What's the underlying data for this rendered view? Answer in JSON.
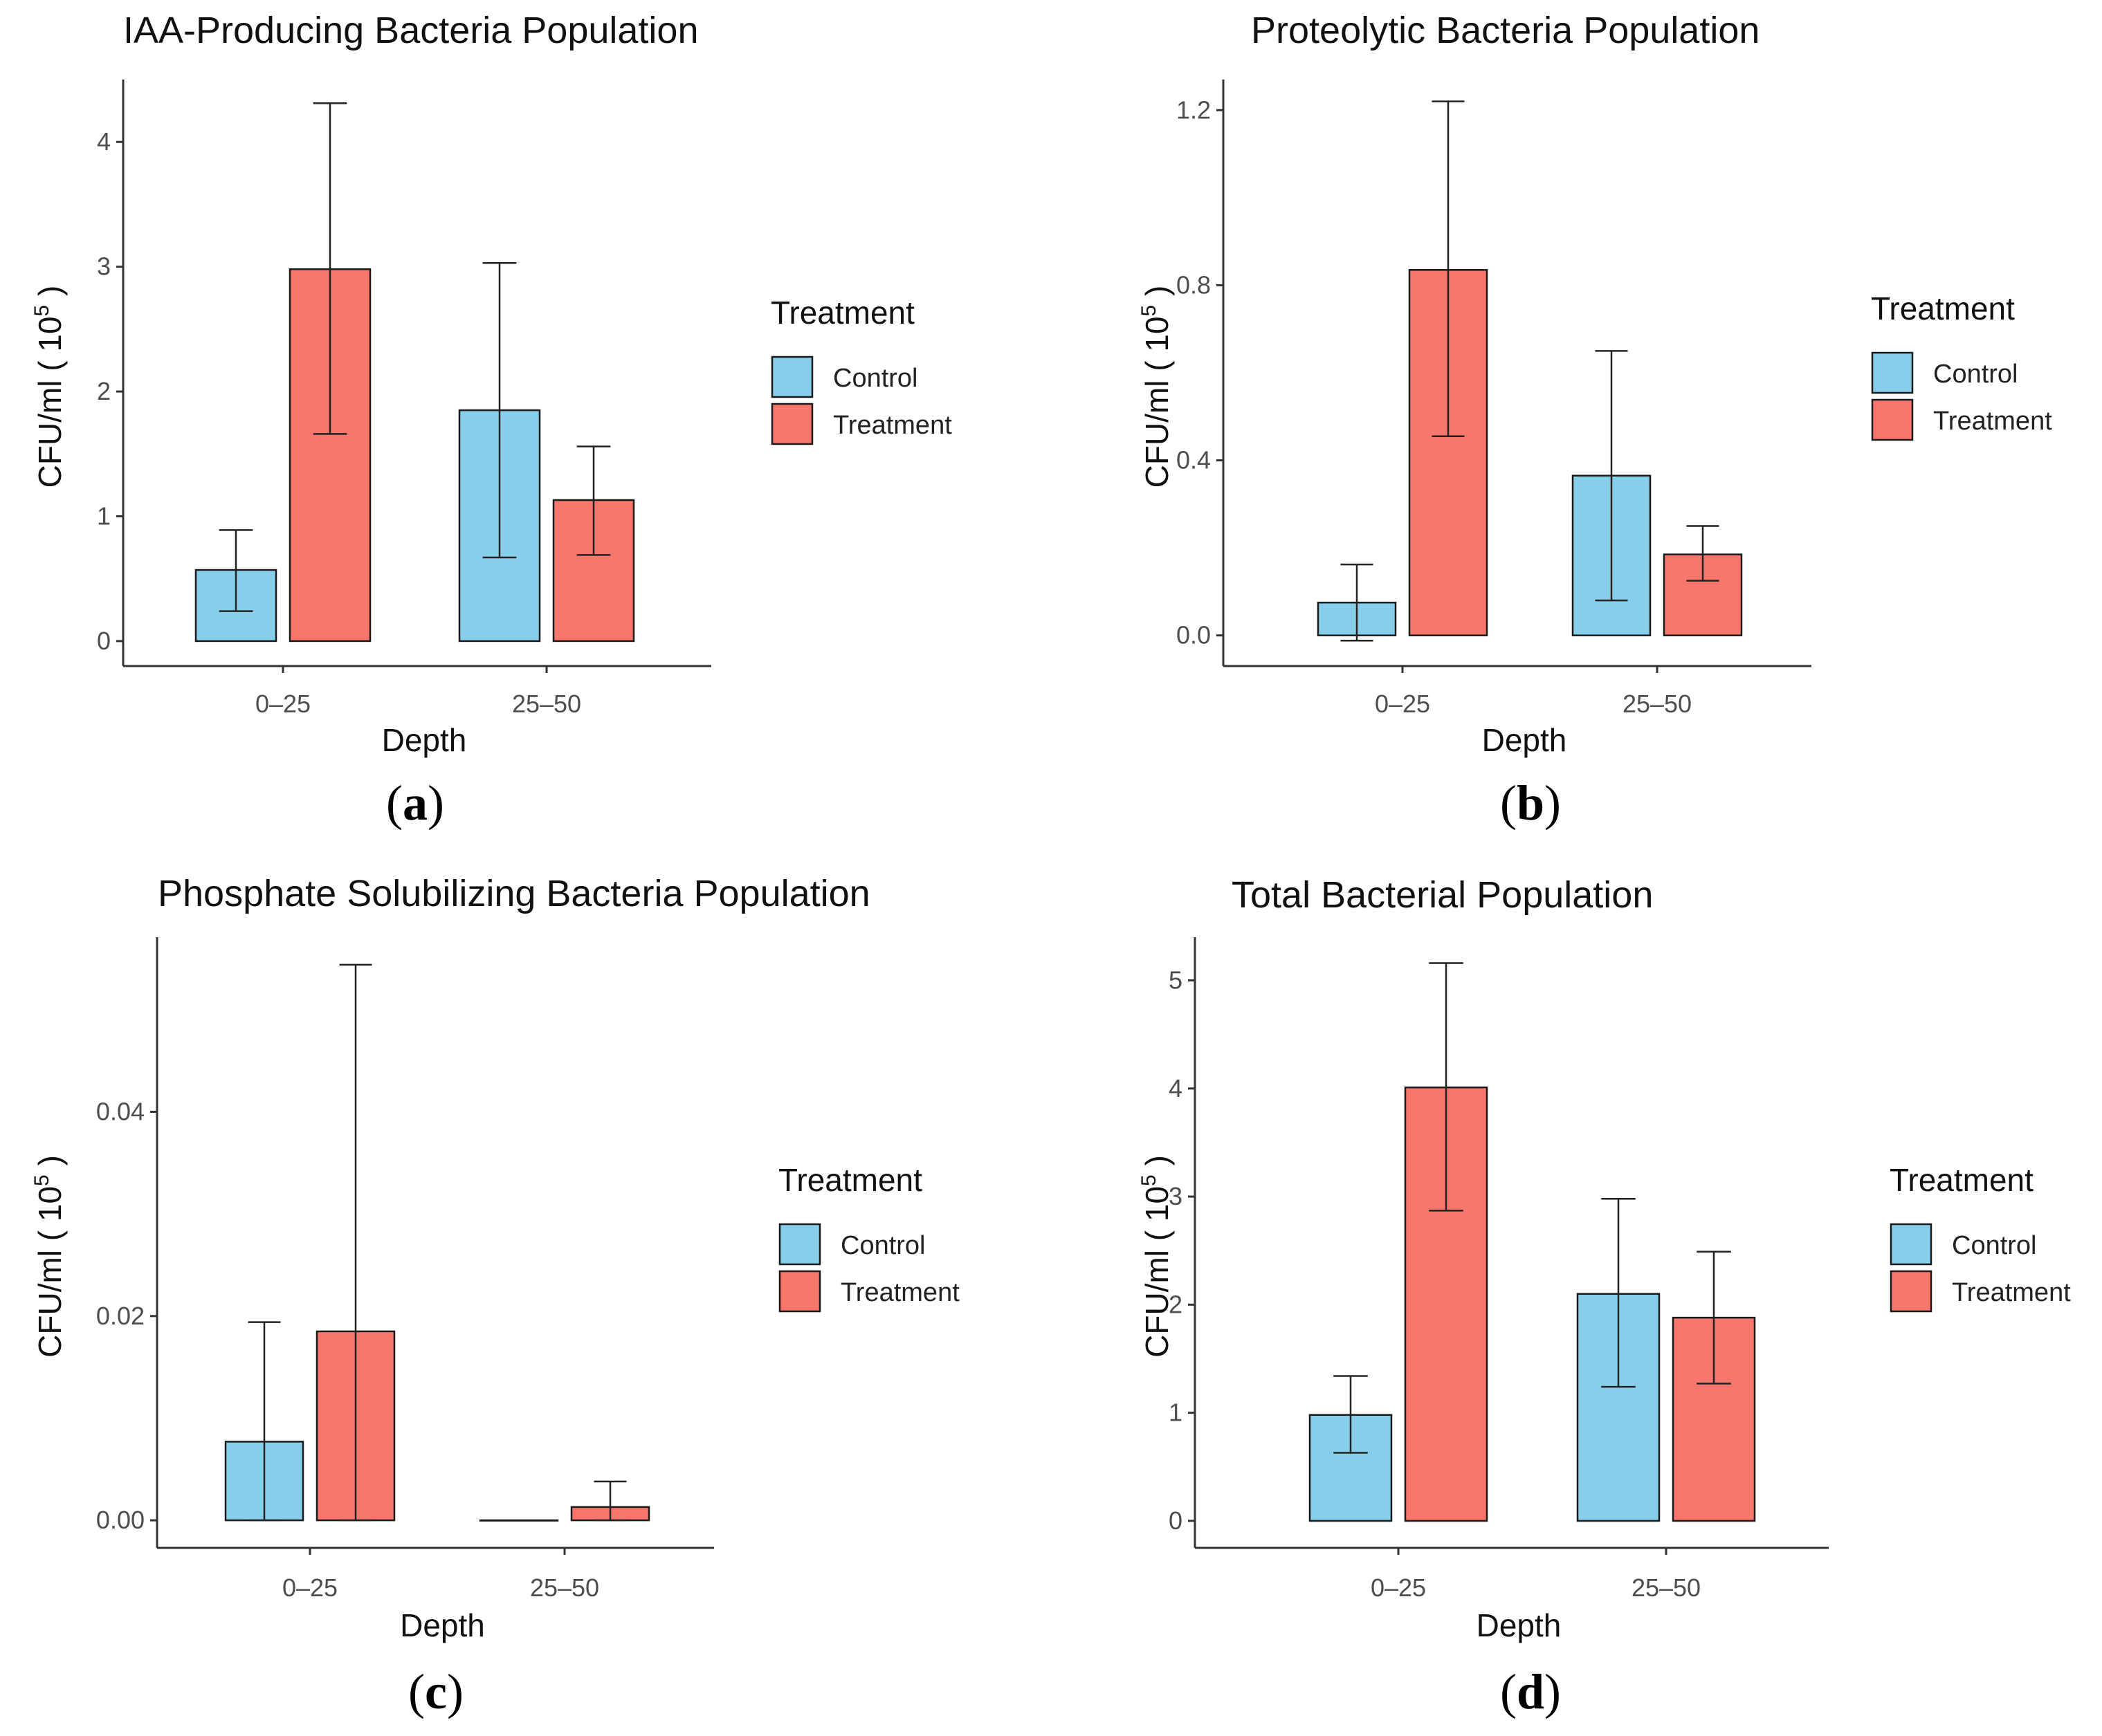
{
  "colors": {
    "control": "#87CEEB",
    "treatment": "#F8776C",
    "outline": "#1a1a1a"
  },
  "legend": {
    "title": "Treatment",
    "items": [
      {
        "label": "Control",
        "color": "#87CEEB"
      },
      {
        "label": "Treatment",
        "color": "#F8776C"
      }
    ]
  },
  "chart_data": [
    {
      "type": "bar",
      "panel_label": "a",
      "title": "IAA-Producing Bacteria Population",
      "xlabel": "Depth",
      "ylabel": "CFU/ml ( 10",
      "ylabel_sup": "5",
      "ylabel_end": " )",
      "categories": [
        "0–25",
        "25–50"
      ],
      "ylim": [
        -0.2,
        4.5
      ],
      "yticks": [
        0,
        1,
        2,
        3,
        4
      ],
      "ytick_labels": [
        "0",
        "1",
        "2",
        "3",
        "4"
      ],
      "series": [
        {
          "name": "Control",
          "values": [
            0.57,
            1.85
          ],
          "err_low": [
            0.24,
            0.67
          ],
          "err_high": [
            0.89,
            3.03
          ]
        },
        {
          "name": "Treatment",
          "values": [
            2.98,
            1.13
          ],
          "err_low": [
            1.66,
            0.69
          ],
          "err_high": [
            4.31,
            1.56
          ]
        }
      ]
    },
    {
      "type": "bar",
      "panel_label": "b",
      "title": "Proteolytic Bacteria Population",
      "xlabel": "Depth",
      "ylabel": "CFU/ml ( 10",
      "ylabel_sup": "5",
      "ylabel_end": " )",
      "categories": [
        "0–25",
        "25–50"
      ],
      "ylim": [
        -0.07,
        1.27
      ],
      "yticks": [
        0,
        0.4,
        0.8,
        1.2
      ],
      "ytick_labels": [
        "0.0",
        "0.4",
        "0.8",
        "1.2"
      ],
      "series": [
        {
          "name": "Control",
          "values": [
            0.075,
            0.365
          ],
          "err_low": [
            -0.012,
            0.08
          ],
          "err_high": [
            0.162,
            0.65
          ]
        },
        {
          "name": "Treatment",
          "values": [
            0.835,
            0.185
          ],
          "err_low": [
            0.455,
            0.125
          ],
          "err_high": [
            1.22,
            0.25
          ]
        }
      ]
    },
    {
      "type": "bar",
      "panel_label": "c",
      "title": "Phosphate Solubilizing Bacteria Population",
      "xlabel": "Depth",
      "ylabel": "CFU/ml ( 10",
      "ylabel_sup": "5",
      "ylabel_end": " )",
      "categories": [
        "0–25",
        "25–50"
      ],
      "ylim": [
        -0.0027,
        0.0571
      ],
      "yticks": [
        0,
        0.02,
        0.04
      ],
      "ytick_labels": [
        "0.00",
        "0.02",
        "0.04"
      ],
      "series": [
        {
          "name": "Control",
          "values": [
            0.0077,
            0.0
          ],
          "err_low": [
            0.0,
            0.0
          ],
          "err_high": [
            0.0194,
            0.0
          ]
        },
        {
          "name": "Treatment",
          "values": [
            0.0185,
            0.0013
          ],
          "err_low": [
            0.0,
            0.0
          ],
          "err_high": [
            0.0544,
            0.0038
          ]
        }
      ]
    },
    {
      "type": "bar",
      "panel_label": "d",
      "title": "Total Bacterial Population",
      "xlabel": "Depth",
      "ylabel": "CFU/ml ( 10",
      "ylabel_sup": "5",
      "ylabel_end": " )",
      "categories": [
        "0–25",
        "25–50"
      ],
      "ylim": [
        -0.25,
        5.4
      ],
      "yticks": [
        0,
        1,
        2,
        3,
        4,
        5
      ],
      "ytick_labels": [
        "0",
        "1",
        "2",
        "3",
        "4",
        "5"
      ],
      "series": [
        {
          "name": "Control",
          "values": [
            0.98,
            2.1
          ],
          "err_low": [
            0.63,
            1.24
          ],
          "err_high": [
            1.34,
            2.98
          ]
        },
        {
          "name": "Treatment",
          "values": [
            4.01,
            1.88
          ],
          "err_low": [
            2.87,
            1.27
          ],
          "err_high": [
            5.16,
            2.49
          ]
        }
      ]
    }
  ]
}
